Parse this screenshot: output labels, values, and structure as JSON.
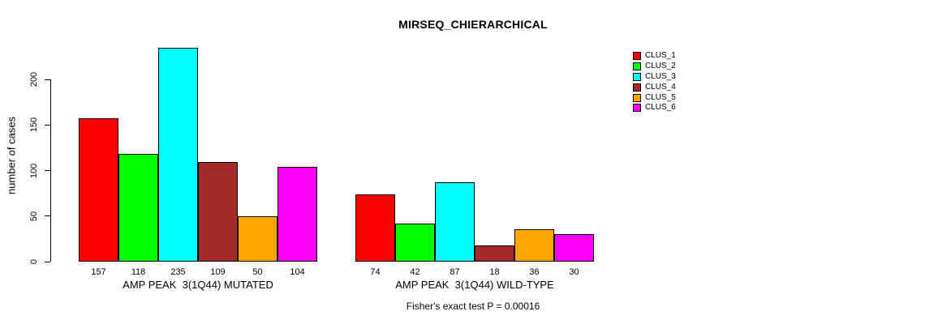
{
  "chart_data": {
    "type": "bar",
    "title": "MIRSEQ_CHIERARCHICAL",
    "ylabel": "number of cases",
    "xlabel": "",
    "ylim": [
      0,
      200
    ],
    "yticks": [
      0,
      50,
      100,
      150,
      200
    ],
    "grid": false,
    "legend_position": "right",
    "categories": [
      "AMP PEAK  3(1Q44) MUTATED",
      "AMP PEAK  3(1Q44) WILD-TYPE"
    ],
    "series": [
      {
        "name": "CLUS_1",
        "color": "#FF0000",
        "values": [
          157,
          74
        ]
      },
      {
        "name": "CLUS_2",
        "color": "#00FF00",
        "values": [
          118,
          42
        ]
      },
      {
        "name": "CLUS_3",
        "color": "#00FFFF",
        "values": [
          235,
          87
        ]
      },
      {
        "name": "CLUS_4",
        "color": "#A52A2A",
        "values": [
          109,
          18
        ]
      },
      {
        "name": "CLUS_5",
        "color": "#FFA500",
        "values": [
          50,
          36
        ]
      },
      {
        "name": "CLUS_6",
        "color": "#FF00FF",
        "values": [
          104,
          30
        ]
      }
    ],
    "bar_value_labels": [
      [
        157,
        118,
        235,
        109,
        50,
        104
      ],
      [
        74,
        42,
        87,
        18,
        36,
        30
      ]
    ],
    "annotation": "Fisher's exact test P = 0.00016",
    "colors": {
      "background": "#FFFFFF",
      "axis": "#000000",
      "text": "#000000"
    }
  }
}
